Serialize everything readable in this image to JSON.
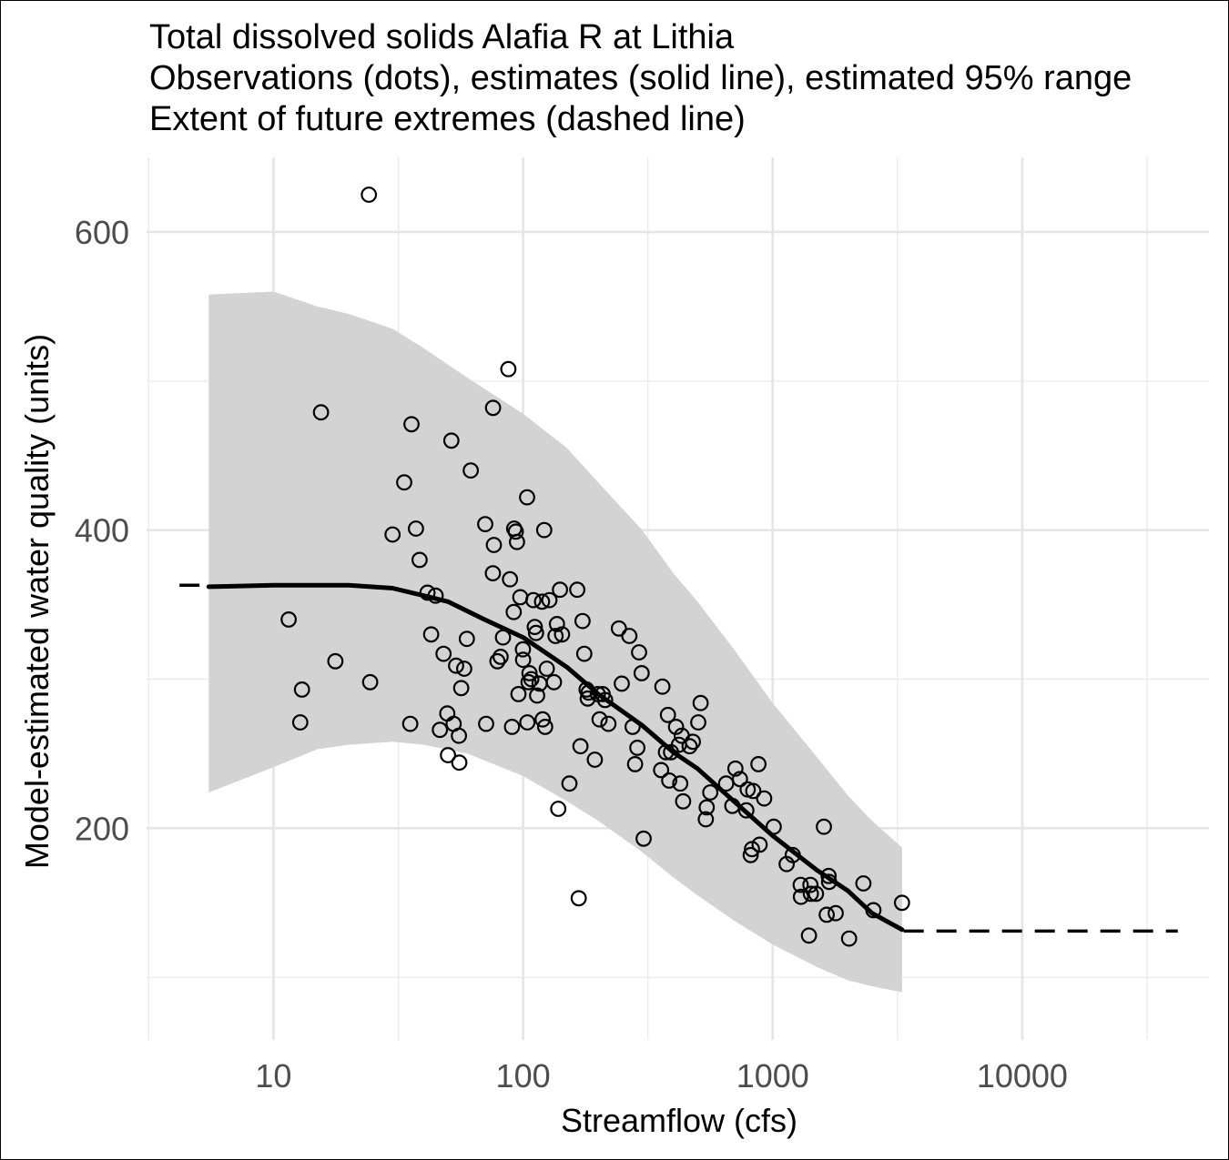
{
  "title_lines": [
    "Total dissolved solids Alafia R at Lithia",
    "Observations (dots), estimates (solid line), estimated 95% range",
    "Extent of future extremes (dashed line)"
  ],
  "chart_data": {
    "type": "scatter",
    "title": "Total dissolved solids Alafia R at Lithia",
    "subtitle": [
      "Observations (dots), estimates (solid line), estimated 95% range",
      "Extent of future extremes (dashed line)"
    ],
    "xlabel": "Streamflow (cfs)",
    "ylabel": "Model-estimated water quality (units)",
    "x_scale": "log10",
    "xlim": [
      3.1,
      56000
    ],
    "ylim": [
      58,
      650
    ],
    "x_ticks": [
      10,
      100,
      1000,
      10000
    ],
    "x_tick_labels": [
      "10",
      "100",
      "1000",
      "10000"
    ],
    "y_ticks": [
      200,
      400,
      600
    ],
    "y_tick_labels": [
      "200",
      "400",
      "600"
    ],
    "grid": true,
    "ribbon_color": "#d3d3d3",
    "point_color": "#000000",
    "estimate_line": [
      [
        5.5,
        362
      ],
      [
        10,
        363
      ],
      [
        20,
        363
      ],
      [
        30,
        361
      ],
      [
        40,
        356
      ],
      [
        50,
        352
      ],
      [
        70,
        340
      ],
      [
        100,
        328
      ],
      [
        150,
        308
      ],
      [
        200,
        290
      ],
      [
        300,
        269
      ],
      [
        400,
        251
      ],
      [
        500,
        240
      ],
      [
        700,
        218
      ],
      [
        1000,
        195
      ],
      [
        1500,
        172
      ],
      [
        2000,
        158
      ],
      [
        2500,
        143
      ],
      [
        3300,
        132
      ]
    ],
    "ribbon_upper": [
      [
        5.5,
        558
      ],
      [
        10,
        560
      ],
      [
        15,
        550
      ],
      [
        20,
        545
      ],
      [
        30,
        535
      ],
      [
        40,
        522
      ],
      [
        60,
        502
      ],
      [
        100,
        478
      ],
      [
        150,
        455
      ],
      [
        200,
        432
      ],
      [
        300,
        400
      ],
      [
        400,
        371
      ],
      [
        500,
        352
      ],
      [
        700,
        320
      ],
      [
        1000,
        284
      ],
      [
        1500,
        248
      ],
      [
        2000,
        222
      ],
      [
        2500,
        205
      ],
      [
        3300,
        187
      ]
    ],
    "ribbon_lower": [
      [
        5.5,
        224
      ],
      [
        10,
        241
      ],
      [
        15,
        253
      ],
      [
        20,
        256
      ],
      [
        30,
        258
      ],
      [
        40,
        256
      ],
      [
        60,
        250
      ],
      [
        100,
        235
      ],
      [
        150,
        218
      ],
      [
        200,
        205
      ],
      [
        300,
        184
      ],
      [
        400,
        167
      ],
      [
        500,
        155
      ],
      [
        700,
        138
      ],
      [
        1000,
        122
      ],
      [
        1500,
        107
      ],
      [
        2000,
        98
      ],
      [
        2500,
        94
      ],
      [
        3300,
        90
      ]
    ],
    "future_extremes_dashed": [
      {
        "x": [
          4.2,
          5.4
        ],
        "y": [
          363,
          363
        ]
      },
      {
        "x": [
          3350,
          42000
        ],
        "y": [
          131,
          131
        ]
      }
    ],
    "observations": [
      [
        11.5,
        340
      ],
      [
        13,
        293
      ],
      [
        12.8,
        271
      ],
      [
        15.5,
        479
      ],
      [
        17.7,
        312
      ],
      [
        24.1,
        625
      ],
      [
        24.4,
        298
      ],
      [
        30,
        397
      ],
      [
        33.4,
        432
      ],
      [
        35.3,
        270
      ],
      [
        35.7,
        471
      ],
      [
        37.2,
        401
      ],
      [
        38.5,
        380
      ],
      [
        41.4,
        358
      ],
      [
        42.8,
        330
      ],
      [
        44.6,
        356
      ],
      [
        46.4,
        266
      ],
      [
        48,
        317
      ],
      [
        49.7,
        277
      ],
      [
        50,
        249
      ],
      [
        51.6,
        460
      ],
      [
        52.7,
        270
      ],
      [
        53.9,
        309
      ],
      [
        55.3,
        262
      ],
      [
        55.5,
        244
      ],
      [
        56.5,
        294
      ],
      [
        58.1,
        307
      ],
      [
        59.5,
        327
      ],
      [
        61.7,
        440
      ],
      [
        70.5,
        404
      ],
      [
        71.1,
        270
      ],
      [
        75.8,
        482
      ],
      [
        75.7,
        371
      ],
      [
        76.4,
        390
      ],
      [
        78.9,
        312
      ],
      [
        81.3,
        315
      ],
      [
        83.1,
        328
      ],
      [
        87.3,
        508
      ],
      [
        88.6,
        367
      ],
      [
        90.3,
        268
      ],
      [
        91.7,
        345
      ],
      [
        92.1,
        401
      ],
      [
        93.5,
        399
      ],
      [
        94.5,
        392
      ],
      [
        95.8,
        290
      ],
      [
        97.4,
        355
      ],
      [
        99.8,
        320
      ],
      [
        100,
        313
      ],
      [
        103.8,
        422
      ],
      [
        104,
        271
      ],
      [
        105.2,
        298
      ],
      [
        106.1,
        304
      ],
      [
        107.9,
        300
      ],
      [
        110,
        353
      ],
      [
        111.4,
        335
      ],
      [
        112.7,
        331
      ],
      [
        113.8,
        289
      ],
      [
        116.4,
        297
      ],
      [
        119.1,
        352
      ],
      [
        119.8,
        273
      ],
      [
        121.5,
        400
      ],
      [
        122.5,
        268
      ],
      [
        124.4,
        307
      ],
      [
        127.5,
        353
      ],
      [
        133,
        298
      ],
      [
        134.9,
        329
      ],
      [
        136.7,
        337
      ],
      [
        138.3,
        213
      ],
      [
        140.5,
        360
      ],
      [
        143.3,
        330
      ],
      [
        153.4,
        230
      ],
      [
        164.9,
        360
      ],
      [
        167.1,
        153
      ],
      [
        169.7,
        255
      ],
      [
        173.1,
        339
      ],
      [
        175.8,
        317
      ],
      [
        179.6,
        293
      ],
      [
        181.6,
        287
      ],
      [
        183,
        291
      ],
      [
        193.9,
        246
      ],
      [
        199.3,
        290
      ],
      [
        202.5,
        273
      ],
      [
        208.3,
        290
      ],
      [
        213.1,
        286
      ],
      [
        219.7,
        270
      ],
      [
        241.9,
        334
      ],
      [
        248.5,
        297
      ],
      [
        266.5,
        329
      ],
      [
        274.7,
        268
      ],
      [
        281.1,
        243
      ],
      [
        286.9,
        254
      ],
      [
        291.5,
        318
      ],
      [
        298.6,
        304
      ],
      [
        304.1,
        193
      ],
      [
        357.3,
        239
      ],
      [
        361.4,
        295
      ],
      [
        373.5,
        251
      ],
      [
        380.4,
        276
      ],
      [
        384.9,
        232
      ],
      [
        391.5,
        251
      ],
      [
        409.9,
        268
      ],
      [
        421.3,
        256
      ],
      [
        426.2,
        230
      ],
      [
        432.5,
        262
      ],
      [
        437.9,
        218
      ],
      [
        464.6,
        255
      ],
      [
        479.1,
        258
      ],
      [
        503.5,
        271
      ],
      [
        514.5,
        284
      ],
      [
        539.5,
        206
      ],
      [
        544.4,
        214
      ],
      [
        562.2,
        224
      ],
      [
        651,
        230
      ],
      [
        689.2,
        215
      ],
      [
        708.8,
        240
      ],
      [
        739.3,
        233
      ],
      [
        784.2,
        212
      ],
      [
        794.5,
        226
      ],
      [
        816.7,
        182
      ],
      [
        826.1,
        186
      ],
      [
        835.6,
        225
      ],
      [
        876.7,
        243
      ],
      [
        886.5,
        189
      ],
      [
        924.7,
        220
      ],
      [
        1010,
        201
      ],
      [
        1138,
        176
      ],
      [
        1203.5,
        182
      ],
      [
        1294.3,
        162
      ],
      [
        1297.8,
        154
      ],
      [
        1397.6,
        128
      ],
      [
        1416.2,
        162
      ],
      [
        1422,
        156
      ],
      [
        1491.6,
        156
      ],
      [
        1603.6,
        201
      ],
      [
        1646.2,
        142
      ],
      [
        1675.8,
        168
      ],
      [
        1683.2,
        164
      ],
      [
        1789.2,
        143
      ],
      [
        2023.7,
        126
      ],
      [
        2309.5,
        163
      ],
      [
        2533.3,
        145
      ],
      [
        3297.1,
        150
      ]
    ]
  }
}
